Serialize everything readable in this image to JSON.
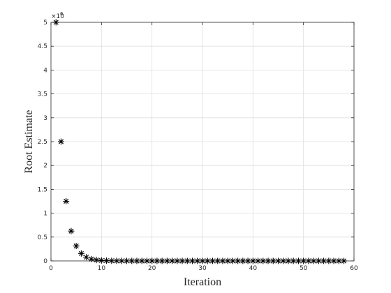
{
  "chart_data": {
    "type": "scatter",
    "marker": "asterisk",
    "marker_color": "#000000",
    "grid": true,
    "xlabel": "Iteration",
    "ylabel": "Root Estimate",
    "xlim": [
      0,
      60
    ],
    "ylim": [
      0,
      5000000
    ],
    "y_multiplier_label": "×10",
    "y_multiplier_exponent": "6",
    "x_ticks": [
      0,
      10,
      20,
      30,
      40,
      50,
      60
    ],
    "x_tick_labels": [
      "0",
      "10",
      "20",
      "30",
      "40",
      "50",
      "60"
    ],
    "y_ticks": [
      0,
      500000,
      1000000,
      1500000,
      2000000,
      2500000,
      3000000,
      3500000,
      4000000,
      4500000,
      5000000
    ],
    "y_tick_labels": [
      "0",
      "0.5",
      "1",
      "1.5",
      "2",
      "2.5",
      "3",
      "3.5",
      "4",
      "4.5",
      "5"
    ],
    "series": [
      {
        "x": [
          1,
          2,
          3,
          4,
          5,
          6,
          7,
          8,
          9,
          10,
          11,
          12,
          13,
          14,
          15,
          16,
          17,
          18,
          19,
          20,
          21,
          22,
          23,
          24,
          25,
          26,
          27,
          28,
          29,
          30,
          31,
          32,
          33,
          34,
          35,
          36,
          37,
          38,
          39,
          40,
          41,
          42,
          43,
          44,
          45,
          46,
          47,
          48,
          49,
          50,
          51,
          52,
          53,
          54,
          55,
          56,
          57,
          58
        ],
        "y": [
          5000000,
          2500000,
          1250000,
          625000,
          312500,
          156250,
          78125,
          39062,
          19531,
          9766,
          4883,
          2441,
          1221,
          610,
          305,
          153,
          76,
          38,
          19,
          10,
          5,
          2,
          1,
          0,
          0,
          0,
          0,
          0,
          0,
          0,
          0,
          0,
          0,
          0,
          0,
          0,
          0,
          0,
          0,
          0,
          0,
          0,
          0,
          0,
          0,
          0,
          0,
          0,
          0,
          0,
          0,
          0,
          0,
          0,
          0,
          0,
          0,
          0
        ]
      }
    ]
  }
}
